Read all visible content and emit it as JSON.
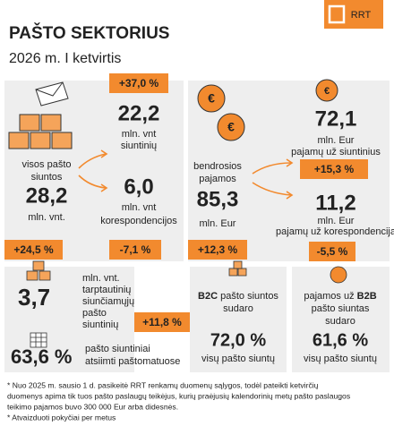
{
  "header": {
    "title": "PAŠTO SEKTORIUS",
    "subtitle": "2026 m. I ketvirtis",
    "logo": "RRT"
  },
  "volume": {
    "total": {
      "label": [
        "visos pašto",
        "siuntos"
      ],
      "value": "28,2",
      "unit": "mln. vnt.",
      "change": "+24,5 %"
    },
    "parcels": {
      "value": "22,2",
      "unit": [
        "mln. vnt",
        "siuntinių"
      ],
      "change": "+37,0 %"
    },
    "letters": {
      "value": "6,0",
      "unit": [
        "mln. vnt",
        "korespondencijos"
      ],
      "change": "-7,1 %"
    }
  },
  "revenue": {
    "total": {
      "label": [
        "bendrosios",
        "pajamos"
      ],
      "value": "85,3",
      "unit": "mln. Eur",
      "change": "+12,3 %"
    },
    "parcels": {
      "value": "72,1",
      "unit": [
        "mln. Eur",
        "pajamų už siuntinius"
      ],
      "change": "+15,3 %"
    },
    "letters": {
      "value": "11,2",
      "unit": [
        "mln. Eur",
        "pajamų už korespondenciją"
      ],
      "change": "-5,5 %"
    }
  },
  "international": {
    "value": "3,7",
    "label": [
      "mln. vnt.",
      "tarptautinių",
      "siunčiamųjų",
      "pašto",
      "siuntinių"
    ],
    "change": "+11,8 %"
  },
  "lockers": {
    "value": "63,6 %",
    "label": [
      "pašto siuntiniai",
      "atsiimti paštomatuose"
    ]
  },
  "b2c": {
    "label_bold": "B2C",
    "label": [
      " pašto siuntos",
      "sudaro"
    ],
    "value": "72,0 %",
    "note": "visų pašto siuntų"
  },
  "b2b": {
    "label_start": "pajamos už ",
    "label_bold": "B2B",
    "label": [
      "pašto siuntas",
      "sudaro"
    ],
    "value": "61,6 %",
    "note": "visų pašto siuntų"
  },
  "footnotes": [
    "* Nuo 2025 m. sausio 1 d. pasikeitė RRT renkamų duomenų sąlygos, todėl pateikti ketvirčių",
    "duomenys apima tik tuos pašto paslaugų teikėjus, kurių praėjusių kalendorinių metų pašto paslaugos",
    "teikimo pajamos buvo 300 000 Eur arba didesnės.",
    "* Atvaizduoti pokyčiai per metus"
  ]
}
